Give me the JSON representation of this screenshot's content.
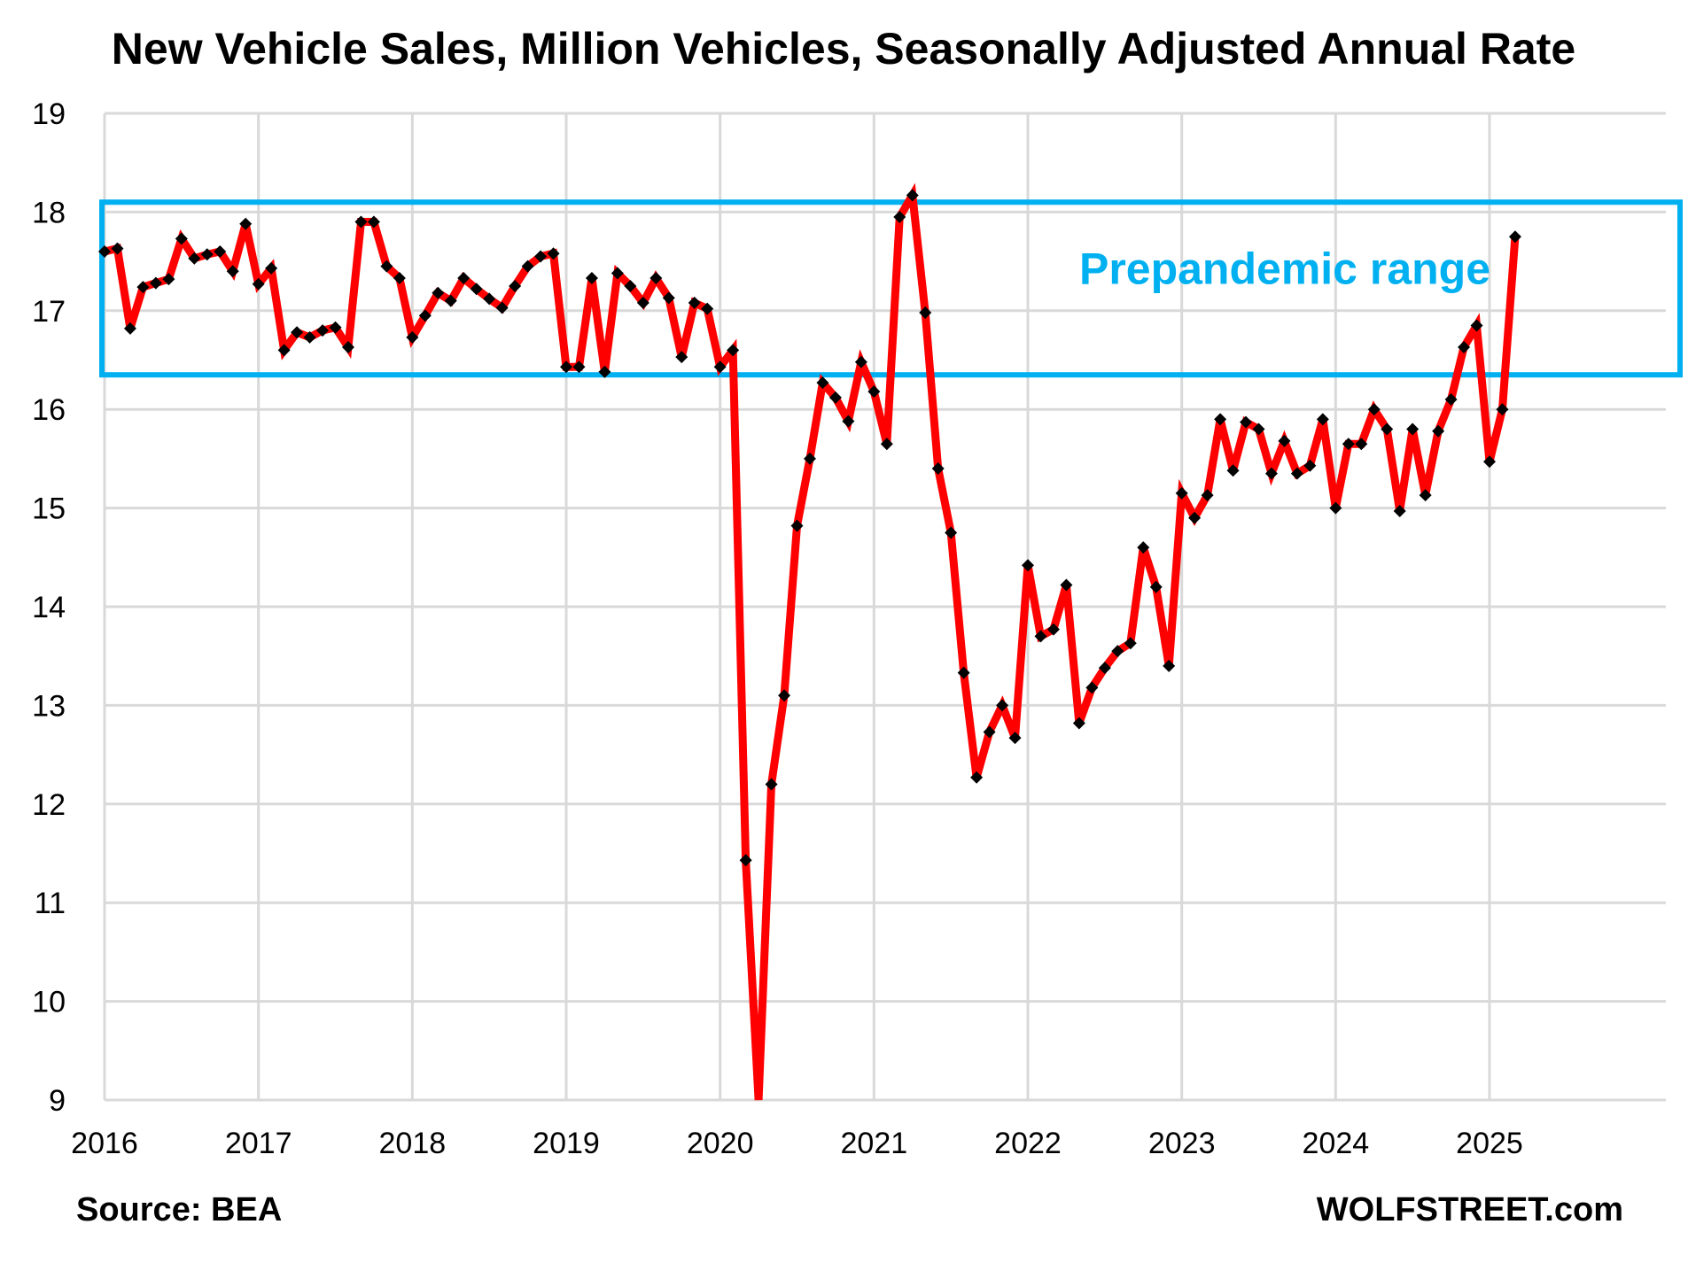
{
  "chart_data": {
    "type": "line",
    "title": "New Vehicle Sales, Million Vehicles, Seasonally Adjusted Annual Rate",
    "xlabel": "",
    "ylabel": "",
    "ylim": [
      9,
      19
    ],
    "yticks": [
      "9",
      "10",
      "11",
      "12",
      "13",
      "14",
      "15",
      "16",
      "17",
      "18",
      "19"
    ],
    "xlim": [
      "2016-01",
      "2025-03"
    ],
    "xticks": [
      "2016",
      "2017",
      "2018",
      "2019",
      "2020",
      "2021",
      "2022",
      "2023",
      "2024",
      "2025"
    ],
    "grid": true,
    "legend": "none",
    "series": [
      {
        "name": "New Vehicle Sales (SAAR, millions)",
        "color": "#ff0000",
        "marker_color": "#000000",
        "marker": "diamond",
        "start": "2016-01",
        "frequency": "monthly",
        "values": [
          17.6,
          17.63,
          16.82,
          17.24,
          17.28,
          17.32,
          17.73,
          17.53,
          17.57,
          17.6,
          17.4,
          17.88,
          17.27,
          17.43,
          16.6,
          16.78,
          16.73,
          16.8,
          16.83,
          16.63,
          17.9,
          17.9,
          17.45,
          17.33,
          16.73,
          16.95,
          17.18,
          17.1,
          17.33,
          17.22,
          17.12,
          17.03,
          17.25,
          17.45,
          17.55,
          17.58,
          16.43,
          16.43,
          17.33,
          16.38,
          17.38,
          17.25,
          17.08,
          17.33,
          17.13,
          16.53,
          17.08,
          17.02,
          16.43,
          16.6,
          11.43,
          8.9,
          12.2,
          13.1,
          14.82,
          15.5,
          16.27,
          16.12,
          15.88,
          16.48,
          16.18,
          15.65,
          17.95,
          18.17,
          16.98,
          15.4,
          14.75,
          13.33,
          12.27,
          12.73,
          13.0,
          12.67,
          14.42,
          13.7,
          13.77,
          14.22,
          12.82,
          13.18,
          13.38,
          13.55,
          13.63,
          14.6,
          14.2,
          13.4,
          15.15,
          14.9,
          15.13,
          15.9,
          15.38,
          15.87,
          15.8,
          15.35,
          15.68,
          15.35,
          15.43,
          15.9,
          15.0,
          15.65,
          15.65,
          16.0,
          15.8,
          14.97,
          15.8,
          15.13,
          15.78,
          16.1,
          16.63,
          16.85,
          15.47,
          16.0,
          17.75
        ]
      }
    ],
    "annotations": [
      {
        "type": "range-box",
        "label": "Prepandemic range",
        "y_low": 16.35,
        "y_high": 18.1,
        "color": "#00b0f0"
      }
    ],
    "source": "Source: BEA",
    "credit": "WOLFSTREET.com"
  }
}
